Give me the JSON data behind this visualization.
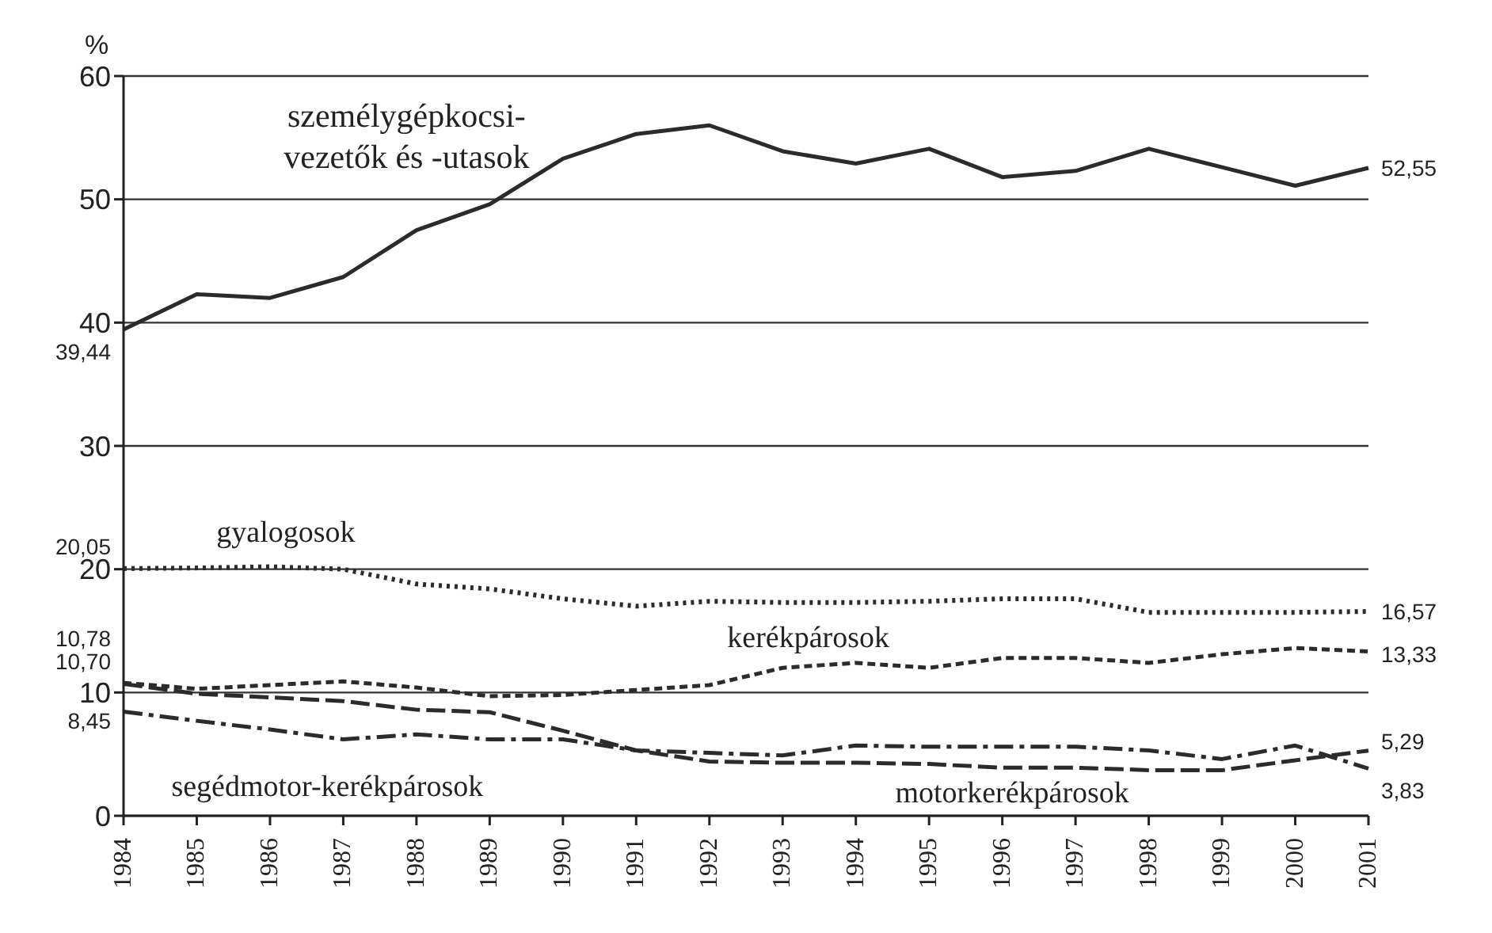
{
  "chart_data": {
    "type": "line",
    "ylabel": "%",
    "categories": [
      "1984",
      "1985",
      "1986",
      "1987",
      "1988",
      "1989",
      "1990",
      "1991",
      "1992",
      "1993",
      "1994",
      "1995",
      "1996",
      "1997",
      "1998",
      "1999",
      "2000",
      "2001"
    ],
    "ylim": [
      0,
      60
    ],
    "yticks": [
      0,
      10,
      20,
      30,
      40,
      50,
      60
    ],
    "grid": "y",
    "legend": false,
    "marker": "none",
    "series": [
      {
        "name": "személygépkocsi-vezetők és -utasok",
        "color": "#2b2b2b",
        "line_style": "solid",
        "values": [
          39.44,
          42.3,
          42.0,
          43.7,
          47.5,
          49.6,
          53.3,
          55.3,
          56.0,
          53.9,
          52.9,
          54.1,
          51.8,
          52.3,
          54.1,
          52.6,
          51.1,
          52.55
        ],
        "value_labels": [
          "39,44",
          null,
          null,
          null,
          null,
          null,
          null,
          null,
          null,
          null,
          null,
          null,
          null,
          null,
          null,
          null,
          null,
          "52,55"
        ]
      },
      {
        "name": "gyalogosok",
        "color": "#2b2b2b",
        "line_style": "dotted",
        "values": [
          20.05,
          20.1,
          20.2,
          20.0,
          18.8,
          18.4,
          17.6,
          17.0,
          17.4,
          17.3,
          17.3,
          17.4,
          17.6,
          17.6,
          16.5,
          16.5,
          16.5,
          16.57
        ],
        "value_labels": [
          "20,05",
          null,
          null,
          null,
          null,
          null,
          null,
          null,
          null,
          null,
          null,
          null,
          null,
          null,
          null,
          null,
          null,
          "16,57"
        ]
      },
      {
        "name": "kerékpárosok",
        "color": "#2b2b2b",
        "line_style": "dashed",
        "values": [
          10.78,
          10.3,
          10.6,
          10.9,
          10.4,
          9.7,
          9.8,
          10.2,
          10.6,
          12.0,
          12.4,
          12.0,
          12.8,
          12.8,
          12.4,
          13.1,
          13.6,
          13.33
        ],
        "value_labels": [
          "10,78",
          null,
          null,
          null,
          null,
          null,
          null,
          null,
          null,
          null,
          null,
          null,
          null,
          null,
          null,
          null,
          null,
          "13,33"
        ]
      },
      {
        "name": "motorkerékpárosok",
        "color": "#2b2b2b",
        "line_style": "dashed",
        "values": [
          10.7,
          9.9,
          9.6,
          9.3,
          8.6,
          8.4,
          6.9,
          5.3,
          4.4,
          4.3,
          4.3,
          4.2,
          3.9,
          3.9,
          3.7,
          3.7,
          4.5,
          5.29
        ],
        "value_labels": [
          "10,70",
          null,
          null,
          null,
          null,
          null,
          null,
          null,
          null,
          null,
          null,
          null,
          null,
          null,
          null,
          null,
          null,
          "5,29"
        ]
      },
      {
        "name": "segédmotor-kerékpárosok",
        "color": "#2b2b2b",
        "line_style": "dashed",
        "values": [
          8.45,
          7.7,
          7.0,
          6.2,
          6.6,
          6.2,
          6.2,
          5.3,
          5.1,
          4.9,
          5.7,
          5.6,
          5.6,
          5.6,
          5.3,
          4.6,
          5.7,
          3.83
        ],
        "value_labels": [
          "8,45",
          null,
          null,
          null,
          null,
          null,
          null,
          null,
          null,
          null,
          null,
          null,
          null,
          null,
          null,
          null,
          null,
          "3,83"
        ]
      }
    ]
  }
}
